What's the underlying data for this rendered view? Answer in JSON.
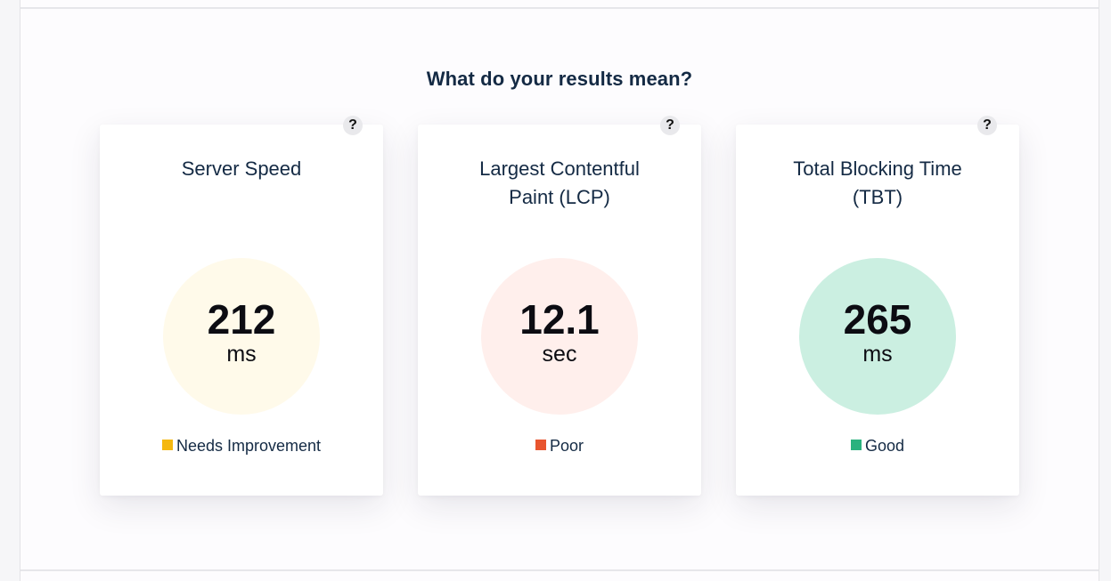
{
  "section": {
    "heading": "What do your results mean?"
  },
  "help_label": "?",
  "cards": [
    {
      "title_line1": "Server Speed",
      "title_line2": "",
      "value": "212",
      "unit": "ms",
      "status": "Needs Improvement",
      "status_color": "#f5b80f",
      "circle_color": "#fffaea"
    },
    {
      "title_line1": "Largest Contentful",
      "title_line2": "Paint (LCP)",
      "value": "12.1",
      "unit": "sec",
      "status": "Poor",
      "status_color": "#e8552f",
      "circle_color": "#ffefec"
    },
    {
      "title_line1": "Total Blocking Time",
      "title_line2": "(TBT)",
      "value": "265",
      "unit": "ms",
      "status": "Good",
      "status_color": "#2ab27e",
      "circle_color": "#cbefe1"
    }
  ]
}
